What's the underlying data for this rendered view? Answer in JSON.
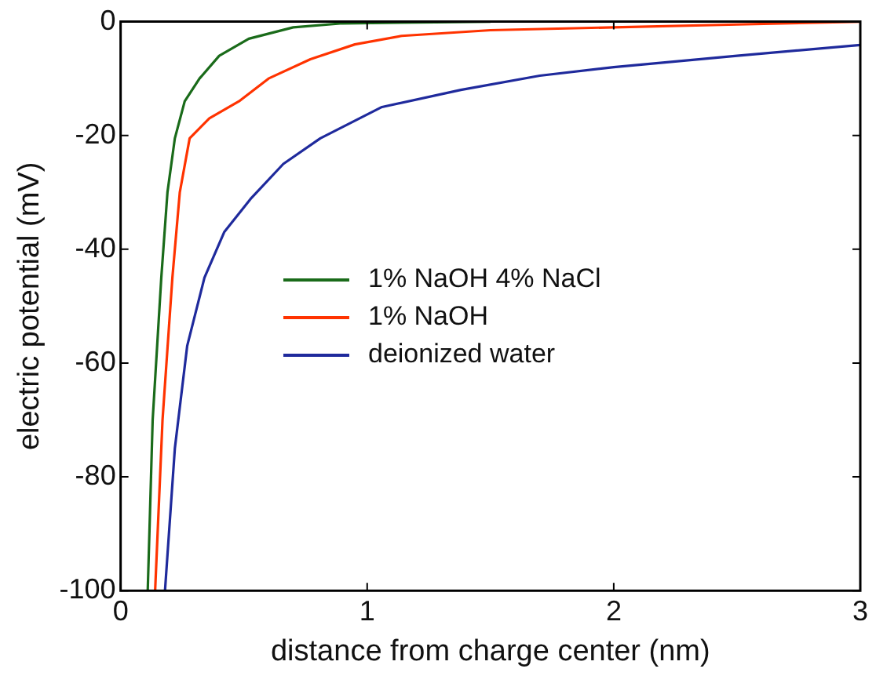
{
  "chart_data": {
    "type": "line",
    "xlabel": "distance from charge center (nm)",
    "ylabel": "electric potential (mV)",
    "xlim": [
      0,
      3
    ],
    "ylim": [
      -100,
      0
    ],
    "xticks": [
      0,
      1,
      2,
      3
    ],
    "yticks": [
      -100,
      -80,
      -60,
      -40,
      -20,
      0
    ],
    "grid": false,
    "legend": "left",
    "marker": "none",
    "line_style": "solid",
    "series": [
      {
        "name": "1% NaOH 4% NaCl",
        "color": "#1a6b1a",
        "x": [
          0.11,
          0.13,
          0.165,
          0.19,
          0.22,
          0.26,
          0.32,
          0.4,
          0.52,
          0.7,
          0.9,
          1.5
        ],
        "values": [
          -100,
          -70,
          -45,
          -30,
          -20.5,
          -14,
          -10,
          -6,
          -3,
          -1,
          -0.3,
          0
        ]
      },
      {
        "name": "1% NaOH",
        "color": "#ff3300",
        "x": [
          0.14,
          0.17,
          0.21,
          0.24,
          0.28,
          0.36,
          0.48,
          0.6,
          0.77,
          0.95,
          1.14,
          1.5,
          2,
          2.5,
          3
        ],
        "values": [
          -100,
          -70,
          -45,
          -30,
          -20.5,
          -17,
          -14,
          -10,
          -6.6,
          -4,
          -2.5,
          -1.5,
          -1,
          -0.5,
          0
        ]
      },
      {
        "name": "deionized water",
        "color": "#1f2a9c",
        "x": [
          0.18,
          0.22,
          0.27,
          0.34,
          0.42,
          0.53,
          0.66,
          0.81,
          1.06,
          1.38,
          1.7,
          2,
          2.5,
          3
        ],
        "values": [
          -100,
          -75,
          -57,
          -45,
          -37,
          -31,
          -25,
          -20.5,
          -15,
          -12,
          -9.5,
          -8,
          -6,
          -4.1
        ]
      }
    ]
  }
}
